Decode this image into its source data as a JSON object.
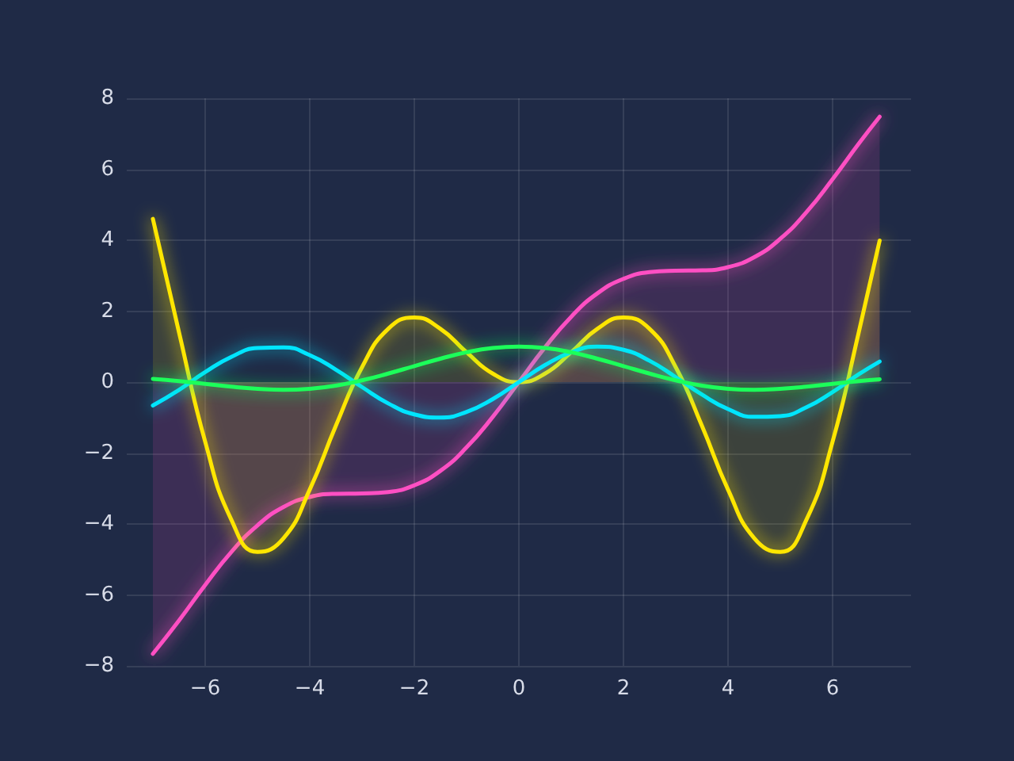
{
  "chart_data": {
    "type": "line",
    "x": [
      -7,
      -6.5,
      -6,
      -5.5,
      -5,
      -4.5,
      -4,
      -3.5,
      -3,
      -2.5,
      -2,
      -1.5,
      -1,
      -0.5,
      0,
      0.5,
      1,
      1.5,
      2,
      2.5,
      3,
      3.5,
      4,
      4.5,
      5,
      5.5,
      6,
      6.5,
      6.9
    ],
    "series": [
      {
        "type": "area",
        "color": "#ff4fc3",
        "values": [
          -7.66,
          -6.72,
          -5.72,
          -4.79,
          -4.04,
          -3.52,
          -3.24,
          -3.15,
          -3.14,
          -3.1,
          -2.91,
          -2.5,
          -1.84,
          -0.98,
          0,
          0.98,
          1.84,
          2.5,
          2.91,
          3.1,
          3.14,
          3.15,
          3.24,
          3.52,
          4.04,
          4.79,
          5.72,
          6.72,
          7.48
        ]
      },
      {
        "type": "area",
        "color": "#ffe600",
        "values": [
          4.6,
          1.4,
          -1.68,
          -3.88,
          -4.79,
          -4.4,
          -3.03,
          -1.23,
          0.42,
          1.5,
          1.82,
          1.5,
          0.84,
          0.24,
          0,
          0.24,
          0.84,
          1.5,
          1.82,
          1.5,
          0.42,
          -1.23,
          -3.03,
          -4.4,
          -4.79,
          -3.88,
          -1.68,
          1.4,
          3.99
        ]
      },
      {
        "type": "line",
        "color": "#00e5ff",
        "values": [
          -0.66,
          -0.22,
          0.28,
          0.71,
          0.96,
          0.98,
          0.76,
          0.35,
          -0.14,
          -0.6,
          -0.91,
          -1,
          -0.84,
          -0.48,
          0,
          0.48,
          0.84,
          1,
          0.91,
          0.6,
          0.14,
          -0.35,
          -0.76,
          -0.98,
          -0.96,
          -0.71,
          -0.28,
          0.22,
          0.58
        ]
      },
      {
        "type": "line",
        "color": "#1aff5a",
        "values": [
          0.09,
          0.03,
          -0.05,
          -0.13,
          -0.19,
          -0.22,
          -0.19,
          -0.1,
          0.05,
          0.24,
          0.45,
          0.66,
          0.84,
          0.96,
          1,
          0.96,
          0.84,
          0.66,
          0.45,
          0.24,
          0.05,
          -0.1,
          -0.19,
          -0.22,
          -0.19,
          -0.13,
          -0.05,
          0.03,
          0.08
        ]
      }
    ],
    "xlim": [
      -7.5,
      7.5
    ],
    "xticks": [
      {
        "value": -6,
        "label": "−6"
      },
      {
        "value": -4,
        "label": "−4"
      },
      {
        "value": -2,
        "label": "−2"
      },
      0,
      2,
      4,
      6
    ],
    "ylim": [
      -8,
      8
    ],
    "yticks": [
      {
        "value": -8,
        "label": "−8"
      },
      {
        "value": -6,
        "label": "−6"
      },
      {
        "value": -4,
        "label": "−4"
      },
      {
        "value": -2,
        "label": "−2"
      },
      0,
      2,
      4,
      6,
      8
    ],
    "grid": true,
    "marker": "none",
    "line_style": "solid"
  }
}
